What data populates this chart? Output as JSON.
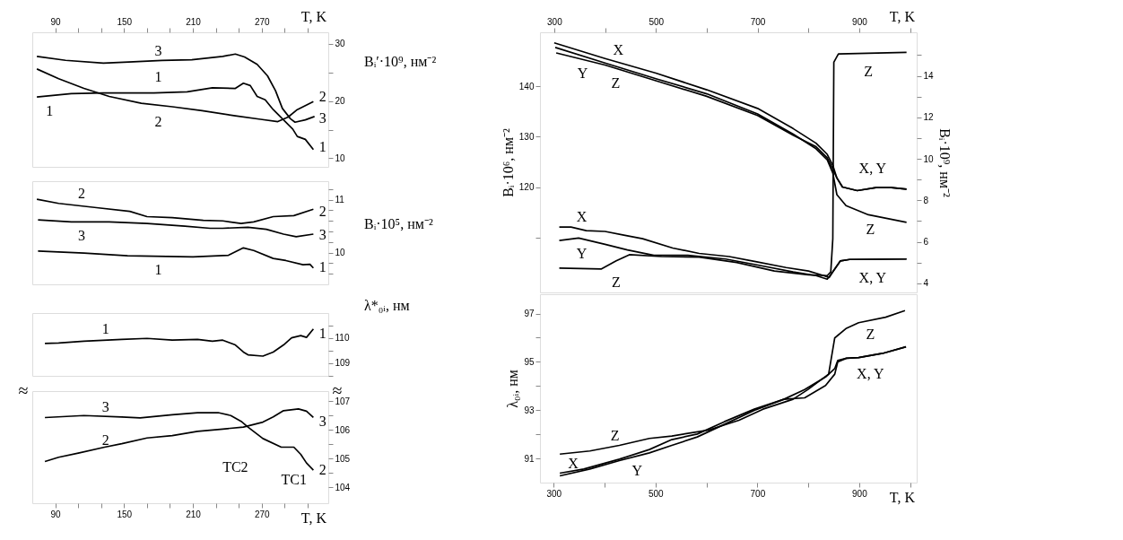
{
  "chart_data": [
    {
      "type": "line",
      "xlabel": "T, K",
      "xlim": [
        70,
        328
      ],
      "xticks": [
        90,
        {
          "value": 110,
          "label": null
        },
        {
          "value": 130,
          "label": null
        },
        150,
        {
          "value": 170,
          "label": null
        },
        {
          "value": 190,
          "label": null
        },
        210,
        {
          "value": 230,
          "label": null
        },
        {
          "value": 250,
          "label": null
        },
        270,
        {
          "value": 290,
          "label": null
        },
        {
          "value": 310,
          "label": null
        }
      ],
      "ylabel": "Bᵢ′·10⁹, нм⁻²",
      "ylim": [
        8.5,
        32
      ],
      "yticks": [
        10,
        {
          "value": 15,
          "label": null
        },
        20,
        {
          "value": 25,
          "label": null
        },
        30
      ],
      "series": [
        {
          "color": "#000000",
          "x": [
            74,
            99,
            132,
            154,
            183,
            209,
            236,
            247,
            255,
            266,
            275,
            282,
            288,
            295,
            299,
            308,
            316
          ],
          "values": [
            27.8,
            27.1,
            26.6,
            26.8,
            27.1,
            27.2,
            27.8,
            28.2,
            27.7,
            26.4,
            24.4,
            21.8,
            18.7,
            16.9,
            16.3,
            16.7,
            17.3
          ]
        },
        {
          "color": "#000000",
          "x": [
            74,
            93,
            115,
            137,
            165,
            192,
            218,
            247,
            269,
            284,
            293,
            301,
            315
          ],
          "values": [
            25.6,
            23.9,
            22.2,
            20.8,
            19.6,
            19.0,
            18.3,
            17.4,
            16.8,
            16.4,
            17.2,
            18.5,
            19.9
          ]
        },
        {
          "color": "#000000",
          "x": [
            74,
            104,
            132,
            176,
            205,
            227,
            247,
            254,
            260,
            266,
            273,
            280,
            288,
            297,
            301,
            308,
            315
          ],
          "values": [
            20.7,
            21.3,
            21.4,
            21.4,
            21.6,
            22.3,
            22.2,
            23.1,
            22.7,
            20.8,
            20.2,
            18.5,
            16.9,
            15.1,
            13.8,
            13.3,
            11.5
          ]
        }
      ],
      "annotations": [
        "3",
        "1",
        "1",
        "2",
        "2",
        "3",
        "1"
      ]
    },
    {
      "type": "line",
      "xlim": [
        70,
        328
      ],
      "tick_labels": "y",
      "ylabel": "Bᵢ·10⁵, нм⁻²",
      "ylim": [
        9.4,
        11.35
      ],
      "yticks": [
        {
          "value": 9.6,
          "label": null
        },
        {
          "value": 9.8,
          "label": null
        },
        10,
        {
          "value": 10.2,
          "label": null
        },
        {
          "value": 10.4,
          "label": null
        },
        {
          "value": 10.6,
          "label": null
        },
        {
          "value": 10.8,
          "label": null
        },
        11,
        {
          "value": 11.2,
          "label": null
        }
      ],
      "series": [
        {
          "color": "#000000",
          "x": [
            74,
            93,
            126,
            155,
            170,
            192,
            219,
            236,
            252,
            263,
            280,
            298,
            315
          ],
          "values": [
            11.01,
            10.93,
            10.85,
            10.78,
            10.68,
            10.66,
            10.61,
            10.6,
            10.55,
            10.58,
            10.68,
            10.7,
            10.82
          ]
        },
        {
          "color": "#000000",
          "x": [
            75,
            104,
            137,
            170,
            203,
            225,
            236,
            258,
            274,
            289,
            300,
            315
          ],
          "values": [
            10.62,
            10.58,
            10.58,
            10.55,
            10.5,
            10.46,
            10.46,
            10.48,
            10.44,
            10.35,
            10.3,
            10.35
          ]
        },
        {
          "color": "#000000",
          "x": [
            75,
            115,
            153,
            210,
            241,
            254,
            263,
            280,
            291,
            306,
            312,
            315
          ],
          "values": [
            10.03,
            9.99,
            9.94,
            9.92,
            9.95,
            10.09,
            10.04,
            9.89,
            9.85,
            9.77,
            9.78,
            9.71
          ]
        }
      ],
      "annotations": [
        "2",
        "3",
        "1",
        "2",
        "3",
        "1"
      ]
    },
    {
      "type": "line",
      "xlim": [
        70,
        328
      ],
      "tick_labels": "y",
      "ylabel": "λ*₀ᵢ, нм",
      "ylim": [
        108.5,
        110.98
      ],
      "yticks": [
        {
          "value": 108.5,
          "label": null
        },
        109,
        {
          "value": 109.5,
          "label": null
        },
        110,
        {
          "value": 110.5,
          "label": null
        }
      ],
      "series": [
        {
          "color": "#000000",
          "x": [
            81,
            93,
            115,
            148,
            170,
            192,
            214,
            227,
            236,
            247,
            254,
            258,
            271,
            280,
            289,
            296,
            304,
            309,
            315
          ],
          "values": [
            109.78,
            109.8,
            109.87,
            109.94,
            109.98,
            109.91,
            109.94,
            109.87,
            109.91,
            109.72,
            109.44,
            109.33,
            109.28,
            109.44,
            109.72,
            110.0,
            110.09,
            110.02,
            110.35
          ]
        }
      ],
      "annotations": [
        "1",
        "1"
      ]
    },
    {
      "type": "line",
      "xlabel": "T, K",
      "xlim": [
        70,
        328
      ],
      "xticks": [
        90,
        {
          "value": 110,
          "label": null
        },
        {
          "value": 130,
          "label": null
        },
        150,
        {
          "value": 170,
          "label": null
        },
        {
          "value": 190,
          "label": null
        },
        210,
        {
          "value": 230,
          "label": null
        },
        {
          "value": 250,
          "label": null
        },
        270,
        {
          "value": 290,
          "label": null
        },
        {
          "value": 310,
          "label": null
        }
      ],
      "ylim": [
        103.45,
        107.35
      ],
      "yticks": [
        104,
        {
          "value": 104.5,
          "label": null
        },
        105,
        {
          "value": 105.5,
          "label": null
        },
        106,
        {
          "value": 106.5,
          "label": null
        },
        107
      ],
      "series": [
        {
          "color": "#000000",
          "x": [
            81,
            115,
            148,
            164,
            192,
            214,
            232,
            243,
            252,
            258,
            271,
            287,
            298,
            304,
            309,
            315
          ],
          "values": [
            106.43,
            106.5,
            106.45,
            106.42,
            106.53,
            106.6,
            106.6,
            106.5,
            106.3,
            106.1,
            105.7,
            105.4,
            105.4,
            105.15,
            104.85,
            104.6
          ]
        },
        {
          "color": "#000000",
          "x": [
            81,
            93,
            111,
            133,
            148,
            170,
            192,
            214,
            236,
            254,
            271,
            280,
            289,
            302,
            309,
            315
          ],
          "values": [
            104.9,
            105.05,
            105.2,
            105.4,
            105.52,
            105.72,
            105.8,
            105.95,
            106.03,
            106.1,
            106.27,
            106.45,
            106.67,
            106.73,
            106.65,
            106.43
          ]
        }
      ],
      "annotations": [
        "≈",
        "≈",
        "3",
        "2",
        "3",
        "2",
        "TC2",
        "TC1"
      ]
    },
    {
      "type": "line",
      "xlabel": "T, K",
      "xlim": [
        272,
        1013
      ],
      "xticks": [
        300,
        {
          "value": 400,
          "label": null
        },
        500,
        {
          "value": 600,
          "label": null
        },
        700,
        {
          "value": 800,
          "label": null
        },
        900,
        {
          "value": 1000,
          "label": null
        }
      ],
      "ylabel": "Bᵢ·10⁶, нм⁻²",
      "ylim": [
        99.1,
        150.7
      ],
      "yticks": [
        {
          "value": 110,
          "label": null
        },
        120,
        130,
        140
      ],
      "y2label": "Bᵢ·10⁹, нм⁻²",
      "y2lim": [
        3.56,
        16.1
      ],
      "y2ticks": [
        4,
        {
          "value": 5,
          "label": null
        },
        6,
        {
          "value": 7,
          "label": null
        },
        8,
        {
          "value": 9,
          "label": null
        },
        10,
        {
          "value": 11,
          "label": null
        },
        12,
        {
          "value": 13,
          "label": null
        },
        14,
        {
          "value": 15,
          "label": null
        }
      ],
      "series": [
        {
          "color": "#000000",
          "x": [
            300,
            400,
            500,
            600,
            700,
            770,
            815,
            837,
            848,
            856,
            867,
            896,
            933,
            963,
            993
          ],
          "values": [
            148.6,
            145.5,
            142.6,
            139.3,
            135.6,
            131.6,
            128.7,
            126.5,
            124.3,
            121.8,
            120.0,
            119.3,
            119.9,
            119.9,
            119.6
          ]
        },
        {
          "color": "#000000",
          "x": [
            302,
            400,
            500,
            600,
            700,
            770,
            815,
            837,
            848,
            856,
            874,
            918,
            993
          ],
          "values": [
            147.7,
            144.6,
            141.5,
            138.5,
            134.5,
            130.5,
            127.6,
            125.4,
            122.8,
            118.5,
            116.3,
            114.5,
            113.0
          ]
        },
        {
          "color": "#000000",
          "x": [
            304,
            400,
            500,
            600,
            700,
            770,
            815,
            837,
            848,
            856,
            867,
            896,
            933,
            963,
            993
          ],
          "values": [
            146.6,
            144.2,
            141.1,
            138.0,
            134.2,
            130.3,
            128.0,
            125.8,
            123.6,
            121.8,
            120.0,
            119.3,
            119.9,
            119.9,
            119.6
          ]
        },
        {
          "color": "#000000",
          "axis": "y2",
          "x": [
            310,
            333,
            363,
            400,
            437,
            474,
            533,
            585,
            644,
            696,
            756,
            800,
            830,
            841,
            848,
            863,
            881,
            993
          ],
          "values": [
            6.71,
            6.71,
            6.54,
            6.5,
            6.32,
            6.15,
            5.7,
            5.44,
            5.29,
            5.05,
            4.76,
            4.59,
            4.37,
            4.28,
            4.55,
            5.08,
            5.15,
            5.17
          ]
        },
        {
          "color": "#000000",
          "axis": "y2",
          "x": [
            310,
            348,
            400,
            444,
            496,
            563,
            637,
            696,
            770,
            815,
            837,
            848,
            863,
            881,
            993
          ],
          "values": [
            6.06,
            6.18,
            5.88,
            5.61,
            5.35,
            5.35,
            5.17,
            4.9,
            4.55,
            4.37,
            4.2,
            4.55,
            5.08,
            5.15,
            5.17
          ]
        },
        {
          "color": "#000000",
          "axis": "y2",
          "x": [
            310,
            393,
            422,
            448,
            511,
            585,
            659,
            733,
            800,
            837,
            844,
            848,
            850,
            859,
            993
          ],
          "values": [
            4.73,
            4.69,
            5.08,
            5.38,
            5.29,
            5.26,
            5.0,
            4.59,
            4.41,
            4.37,
            4.55,
            6.15,
            14.66,
            15.06,
            15.13
          ]
        }
      ],
      "annotations": [
        "X",
        "Y",
        "Z",
        "Z",
        "X, Y",
        "Z",
        "X",
        "Y",
        "Z",
        "X, Y"
      ]
    },
    {
      "type": "line",
      "xlabel": "T, K",
      "xlim": [
        273,
        1013
      ],
      "xticks": [
        300,
        {
          "value": 400,
          "label": null
        },
        500,
        {
          "value": 600,
          "label": null
        },
        700,
        {
          "value": 800,
          "label": null
        },
        900,
        {
          "value": 1000,
          "label": null
        }
      ],
      "ylabel": "λ₀ᵢ, нм",
      "ylim": [
        90.0,
        97.8
      ],
      "yticks": [
        91,
        {
          "value": 92,
          "label": null
        },
        93,
        {
          "value": 94,
          "label": null
        },
        95,
        {
          "value": 96,
          "label": null
        },
        97
      ],
      "series": [
        {
          "color": "#000000",
          "x": [
            312,
            371,
            429,
            488,
            532,
            605,
            664,
            711,
            770,
            799,
            840,
            852,
            875,
            899,
            952,
            990
          ],
          "values": [
            91.18,
            91.31,
            91.54,
            91.83,
            91.93,
            92.18,
            92.58,
            93.04,
            93.45,
            93.85,
            94.49,
            95.99,
            96.39,
            96.62,
            96.85,
            97.12
          ]
        },
        {
          "color": "#000000",
          "x": [
            312,
            359,
            429,
            488,
            532,
            582,
            635,
            694,
            752,
            793,
            834,
            852,
            858,
            875,
            899,
            946,
            992
          ],
          "values": [
            90.39,
            90.56,
            90.97,
            91.37,
            91.78,
            92.01,
            92.52,
            93.04,
            93.45,
            93.85,
            94.37,
            94.72,
            95.06,
            95.15,
            95.18,
            95.35,
            95.62
          ]
        },
        {
          "color": "#000000",
          "x": [
            312,
            371,
            429,
            488,
            532,
            582,
            635,
            694,
            752,
            793,
            834,
            852,
            858,
            875,
            899,
            946,
            992
          ],
          "values": [
            90.28,
            90.56,
            90.91,
            91.23,
            91.54,
            91.89,
            92.41,
            92.99,
            93.45,
            93.51,
            94.02,
            94.49,
            95.0,
            95.15,
            95.18,
            95.35,
            95.62
          ]
        }
      ],
      "annotations": [
        "Z",
        "X",
        "Y",
        "Z",
        "X, Y"
      ]
    }
  ]
}
